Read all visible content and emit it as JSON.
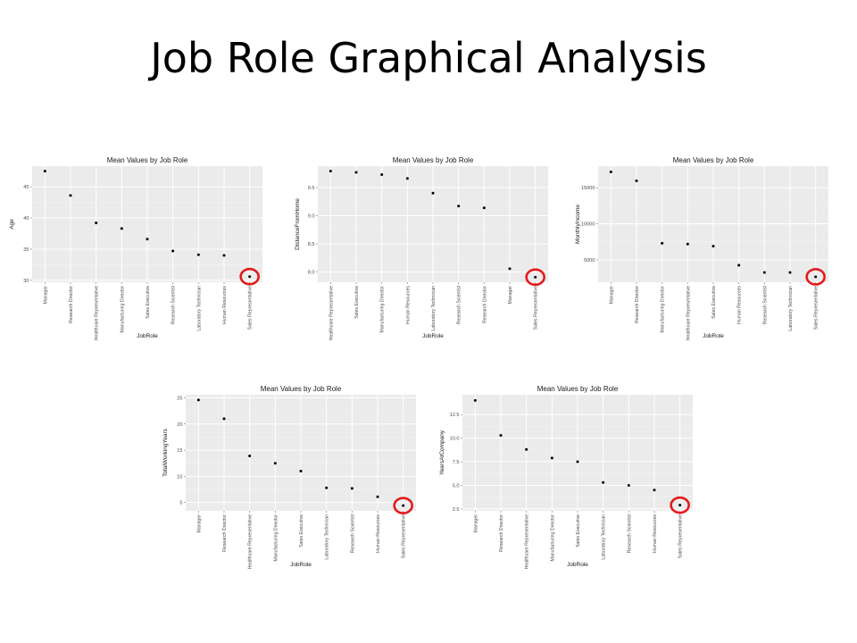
{
  "slide": {
    "title": "Job Role Graphical Analysis"
  },
  "chart_data": [
    {
      "type": "scatter",
      "title": "Mean Values by Job Role",
      "xlabel": "JobRole",
      "ylabel": "Age",
      "categories": [
        "Manager",
        "Research Director",
        "Healthcare Representative",
        "Manufacturing Director",
        "Sales Executive",
        "Research Scientist",
        "Laboratory Technician",
        "Human Resources",
        "Sales Representative"
      ],
      "values": [
        47.5,
        43.6,
        39.2,
        38.3,
        36.6,
        34.7,
        34.1,
        34.0,
        30.6
      ],
      "yticks": [
        30,
        35,
        40,
        45
      ],
      "ylim": [
        29.7,
        48.3
      ],
      "highlight": "Sales Representative",
      "highlight_color": "#e31a1c",
      "grid": true,
      "panel_color": "#ebebeb"
    },
    {
      "type": "scatter",
      "title": "Mean Values by Job Role",
      "xlabel": "JobRole",
      "ylabel": "DistanceFromHome",
      "categories": [
        "Healthcare Representative",
        "Sales Executive",
        "Manufacturing Director",
        "Human Resources",
        "Laboratory Technician",
        "Research Scientist",
        "Research Director",
        "Manager",
        "Sales Representative"
      ],
      "values": [
        9.79,
        9.77,
        9.73,
        9.66,
        9.4,
        9.17,
        9.14,
        8.06,
        7.91
      ],
      "yticks": [
        8.0,
        8.5,
        9.0,
        9.5
      ],
      "yticklabels": [
        "8.0",
        "8.5",
        "9.0",
        "9.5"
      ],
      "ylim": [
        7.82,
        9.88
      ],
      "highlight": "Sales Representative",
      "highlight_color": "#e31a1c",
      "grid": true,
      "panel_color": "#ebebeb"
    },
    {
      "type": "scatter",
      "title": "Mean Values by Job Role",
      "xlabel": "JobRole",
      "ylabel": "MonthlyIncome",
      "categories": [
        "Manager",
        "Research Director",
        "Manufacturing Director",
        "Healthcare Representative",
        "Sales Executive",
        "Human Resources",
        "Research Scientist",
        "Laboratory Technician",
        "Sales Representative"
      ],
      "values": [
        17200,
        15950,
        7300,
        7200,
        6900,
        4250,
        3250,
        3250,
        2650
      ],
      "yticks": [
        5000,
        10000,
        15000
      ],
      "ylim": [
        1900,
        18000
      ],
      "highlight": "Sales Representative",
      "highlight_color": "#e31a1c",
      "grid": true,
      "panel_color": "#ebebeb"
    },
    {
      "type": "scatter",
      "title": "Mean Values by Job Role",
      "xlabel": "JobRole",
      "ylabel": "TotalWorkingYears",
      "categories": [
        "Manager",
        "Research Director",
        "Healthcare Representative",
        "Manufacturing Director",
        "Sales Executive",
        "Laboratory Technician",
        "Research Scientist",
        "Human Resources",
        "Sales Representative"
      ],
      "values": [
        24.6,
        21.0,
        13.9,
        12.5,
        11.0,
        7.8,
        7.7,
        6.1,
        4.4
      ],
      "yticks": [
        5,
        10,
        15,
        20,
        25
      ],
      "ylim": [
        3.4,
        25.6
      ],
      "highlight": "Sales Representative",
      "highlight_color": "#e31a1c",
      "grid": true,
      "panel_color": "#ebebeb"
    },
    {
      "type": "scatter",
      "title": "Mean Values by Job Role",
      "xlabel": "JobRole",
      "ylabel": "YearsAtCompany",
      "categories": [
        "Manager",
        "Research Director",
        "Healthcare Representative",
        "Manufacturing Director",
        "Sales Executive",
        "Laboratory Technician",
        "Research Scientist",
        "Human Resources",
        "Sales Representative"
      ],
      "values": [
        14.0,
        10.3,
        8.8,
        7.9,
        7.5,
        5.3,
        5.0,
        4.5,
        2.9
      ],
      "yticks": [
        2.5,
        5.0,
        7.5,
        10.0,
        12.5
      ],
      "yticklabels": [
        "2.5",
        "5.0",
        "7.5",
        "10.0",
        "12.5"
      ],
      "ylim": [
        2.3,
        14.6
      ],
      "highlight": "Sales Representative",
      "highlight_color": "#e31a1c",
      "grid": true,
      "panel_color": "#ebebeb"
    }
  ]
}
